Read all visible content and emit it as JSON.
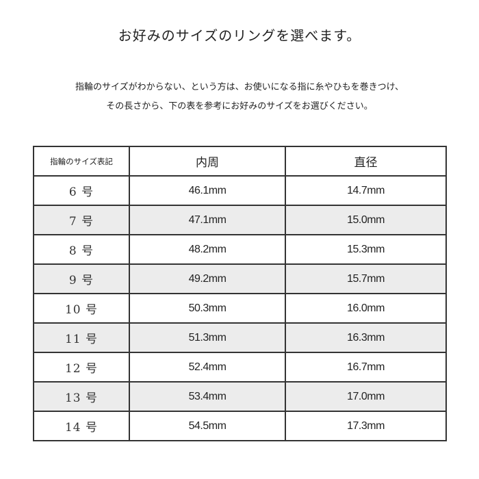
{
  "title": "お好みのサイズのリングを選べます。",
  "description": [
    "指輪のサイズがわからない、という方は、お使いになる指に糸やひもを巻きつけ、",
    "その長さから、下の表を参考にお好みのサイズをお選びください。"
  ],
  "table": {
    "headers": [
      "指輪のサイズ表記",
      "内周",
      "直径"
    ],
    "rows": [
      {
        "size": "6 号",
        "inner": "46.1mm",
        "diameter": "14.7mm"
      },
      {
        "size": "7 号",
        "inner": "47.1mm",
        "diameter": "15.0mm"
      },
      {
        "size": "8 号",
        "inner": "48.2mm",
        "diameter": "15.3mm"
      },
      {
        "size": "9 号",
        "inner": "49.2mm",
        "diameter": "15.7mm"
      },
      {
        "size": "10 号",
        "inner": "50.3mm",
        "diameter": "16.0mm"
      },
      {
        "size": "11 号",
        "inner": "51.3mm",
        "diameter": "16.3mm"
      },
      {
        "size": "12 号",
        "inner": "52.4mm",
        "diameter": "16.7mm"
      },
      {
        "size": "13 号",
        "inner": "53.4mm",
        "diameter": "17.0mm"
      },
      {
        "size": "14 号",
        "inner": "54.5mm",
        "diameter": "17.3mm"
      }
    ]
  },
  "colors": {
    "shaded_row": "#ececec",
    "border": "#333333"
  }
}
